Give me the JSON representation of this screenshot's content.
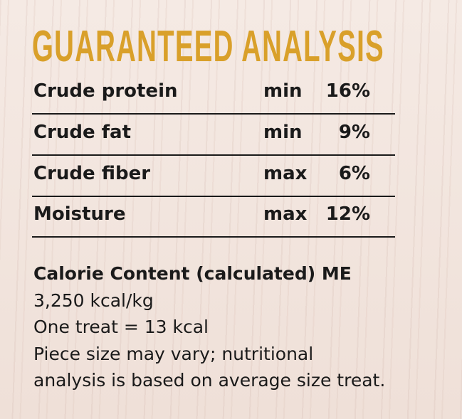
{
  "title": "GUARANTEED ANALYSIS",
  "title_color": "#d9a02a",
  "rows": [
    {
      "label": "Crude protein",
      "qualifier": "min",
      "value": "16%"
    },
    {
      "label": "Crude fat",
      "qualifier": "min",
      "value": "9%"
    },
    {
      "label": "Crude fiber",
      "qualifier": "max",
      "value": "6%"
    },
    {
      "label": "Moisture",
      "qualifier": "max",
      "value": "12%"
    }
  ],
  "calorie": {
    "heading": "Calorie Content (calculated) ME",
    "lines": [
      "3,250 kcal/kg",
      "One treat = 13 kcal",
      "Piece size may vary; nutritional",
      "analysis is based on average size treat."
    ]
  }
}
